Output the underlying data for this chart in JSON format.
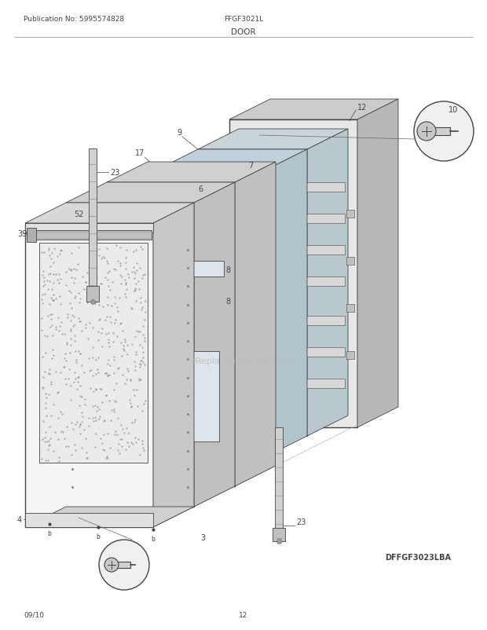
{
  "title": "DOOR",
  "pub_no": "Publication No: 5995574828",
  "model": "FFGF3021L",
  "diagram_id": "DFFGF3023LBA",
  "date": "09/10",
  "page": "12",
  "bg_color": "#ffffff",
  "line_color": "#444444",
  "watermark": "eReplacementParts.com"
}
